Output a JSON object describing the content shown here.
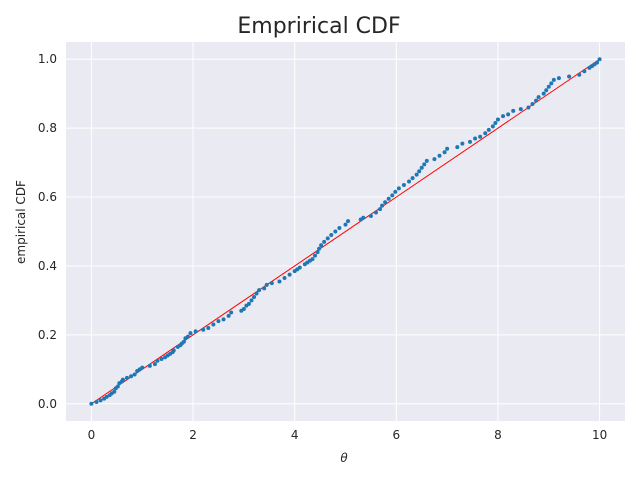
{
  "chart_data": {
    "type": "scatter",
    "title": "Emprirical CDF",
    "xlabel": "θ",
    "ylabel": "empirical CDF",
    "xlim": [
      -0.5,
      10.5
    ],
    "ylim": [
      -0.05,
      1.05
    ],
    "xticks": [
      "0",
      "2",
      "4",
      "6",
      "8",
      "10"
    ],
    "yticks": [
      "0.0",
      "0.2",
      "0.4",
      "0.6",
      "0.8",
      "1.0"
    ],
    "grid": true,
    "background_color": "#eaeaf2",
    "point_color": "#1f77b4",
    "line_color": "#ff0000",
    "reference_line": {
      "x": [
        0,
        10
      ],
      "y": [
        0,
        1
      ]
    },
    "points": [
      [
        0.0,
        0.0
      ],
      [
        0.1,
        0.005
      ],
      [
        0.18,
        0.01
      ],
      [
        0.25,
        0.015
      ],
      [
        0.3,
        0.02
      ],
      [
        0.36,
        0.025
      ],
      [
        0.4,
        0.03
      ],
      [
        0.45,
        0.035
      ],
      [
        0.48,
        0.045
      ],
      [
        0.52,
        0.05
      ],
      [
        0.55,
        0.06
      ],
      [
        0.6,
        0.065
      ],
      [
        0.62,
        0.07
      ],
      [
        0.7,
        0.075
      ],
      [
        0.78,
        0.08
      ],
      [
        0.85,
        0.085
      ],
      [
        0.9,
        0.095
      ],
      [
        0.95,
        0.1
      ],
      [
        1.0,
        0.105
      ],
      [
        1.15,
        0.11
      ],
      [
        1.25,
        0.115
      ],
      [
        1.3,
        0.125
      ],
      [
        1.38,
        0.13
      ],
      [
        1.45,
        0.135
      ],
      [
        1.5,
        0.14
      ],
      [
        1.55,
        0.145
      ],
      [
        1.6,
        0.15
      ],
      [
        1.62,
        0.155
      ],
      [
        1.7,
        0.165
      ],
      [
        1.75,
        0.17
      ],
      [
        1.78,
        0.175
      ],
      [
        1.82,
        0.18
      ],
      [
        1.85,
        0.19
      ],
      [
        1.9,
        0.195
      ],
      [
        1.95,
        0.205
      ],
      [
        2.05,
        0.21
      ],
      [
        2.2,
        0.215
      ],
      [
        2.3,
        0.22
      ],
      [
        2.4,
        0.23
      ],
      [
        2.5,
        0.24
      ],
      [
        2.6,
        0.245
      ],
      [
        2.7,
        0.255
      ],
      [
        2.75,
        0.265
      ],
      [
        2.95,
        0.27
      ],
      [
        3.0,
        0.275
      ],
      [
        3.05,
        0.285
      ],
      [
        3.1,
        0.29
      ],
      [
        3.15,
        0.3
      ],
      [
        3.2,
        0.31
      ],
      [
        3.25,
        0.32
      ],
      [
        3.3,
        0.33
      ],
      [
        3.4,
        0.335
      ],
      [
        3.45,
        0.345
      ],
      [
        3.55,
        0.35
      ],
      [
        3.7,
        0.355
      ],
      [
        3.8,
        0.365
      ],
      [
        3.9,
        0.375
      ],
      [
        4.0,
        0.385
      ],
      [
        4.05,
        0.39
      ],
      [
        4.1,
        0.395
      ],
      [
        4.2,
        0.405
      ],
      [
        4.25,
        0.41
      ],
      [
        4.3,
        0.415
      ],
      [
        4.35,
        0.42
      ],
      [
        4.4,
        0.43
      ],
      [
        4.45,
        0.44
      ],
      [
        4.48,
        0.45
      ],
      [
        4.52,
        0.46
      ],
      [
        4.58,
        0.47
      ],
      [
        4.65,
        0.48
      ],
      [
        4.72,
        0.49
      ],
      [
        4.8,
        0.5
      ],
      [
        4.88,
        0.51
      ],
      [
        5.0,
        0.52
      ],
      [
        5.05,
        0.53
      ],
      [
        5.3,
        0.535
      ],
      [
        5.35,
        0.54
      ],
      [
        5.5,
        0.545
      ],
      [
        5.6,
        0.555
      ],
      [
        5.68,
        0.565
      ],
      [
        5.72,
        0.575
      ],
      [
        5.78,
        0.585
      ],
      [
        5.85,
        0.595
      ],
      [
        5.92,
        0.605
      ],
      [
        5.98,
        0.615
      ],
      [
        6.05,
        0.625
      ],
      [
        6.15,
        0.635
      ],
      [
        6.25,
        0.645
      ],
      [
        6.32,
        0.655
      ],
      [
        6.4,
        0.665
      ],
      [
        6.45,
        0.675
      ],
      [
        6.5,
        0.685
      ],
      [
        6.55,
        0.695
      ],
      [
        6.6,
        0.705
      ],
      [
        6.75,
        0.71
      ],
      [
        6.85,
        0.72
      ],
      [
        6.95,
        0.73
      ],
      [
        7.0,
        0.74
      ],
      [
        7.2,
        0.745
      ],
      [
        7.3,
        0.755
      ],
      [
        7.45,
        0.76
      ],
      [
        7.55,
        0.77
      ],
      [
        7.65,
        0.775
      ],
      [
        7.75,
        0.785
      ],
      [
        7.82,
        0.795
      ],
      [
        7.9,
        0.805
      ],
      [
        7.95,
        0.815
      ],
      [
        8.0,
        0.825
      ],
      [
        8.1,
        0.835
      ],
      [
        8.2,
        0.84
      ],
      [
        8.3,
        0.85
      ],
      [
        8.45,
        0.855
      ],
      [
        8.6,
        0.86
      ],
      [
        8.68,
        0.87
      ],
      [
        8.75,
        0.88
      ],
      [
        8.8,
        0.89
      ],
      [
        8.9,
        0.9
      ],
      [
        8.95,
        0.91
      ],
      [
        9.0,
        0.92
      ],
      [
        9.05,
        0.93
      ],
      [
        9.1,
        0.94
      ],
      [
        9.2,
        0.945
      ],
      [
        9.4,
        0.95
      ],
      [
        9.6,
        0.955
      ],
      [
        9.7,
        0.965
      ],
      [
        9.8,
        0.975
      ],
      [
        9.85,
        0.98
      ],
      [
        9.9,
        0.985
      ],
      [
        9.95,
        0.99
      ],
      [
        10.0,
        1.0
      ]
    ]
  }
}
